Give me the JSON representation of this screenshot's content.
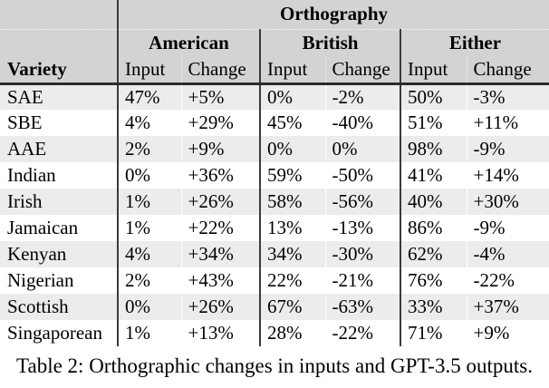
{
  "colors": {
    "header_bg": "#d3d3d3",
    "stripe_bg": "#ececec",
    "rule_dark": "#2b2b2b",
    "line_dark": "#3a3a3a"
  },
  "table": {
    "group_title": "Orthography",
    "groups": [
      "American",
      "British",
      "Either"
    ],
    "variety_header": "Variety",
    "sub_headers": [
      "Input",
      "Change"
    ],
    "rows": [
      [
        "SAE",
        "47%",
        "+5%",
        "0%",
        "-2%",
        "50%",
        "-3%"
      ],
      [
        "SBE",
        "4%",
        "+29%",
        "45%",
        "-40%",
        "51%",
        "+11%"
      ],
      [
        "AAE",
        "2%",
        "+9%",
        "0%",
        "0%",
        "98%",
        "-9%"
      ],
      [
        "Indian",
        "0%",
        "+36%",
        "59%",
        "-50%",
        "41%",
        "+14%"
      ],
      [
        "Irish",
        "1%",
        "+26%",
        "58%",
        "-56%",
        "40%",
        "+30%"
      ],
      [
        "Jamaican",
        "1%",
        "+22%",
        "13%",
        "-13%",
        "86%",
        "-9%"
      ],
      [
        "Kenyan",
        "4%",
        "+34%",
        "34%",
        "-30%",
        "62%",
        "-4%"
      ],
      [
        "Nigerian",
        "2%",
        "+43%",
        "22%",
        "-21%",
        "76%",
        "-22%"
      ],
      [
        "Scottish",
        "0%",
        "+26%",
        "67%",
        "-63%",
        "33%",
        "+37%"
      ],
      [
        "Singaporean",
        "1%",
        "+13%",
        "28%",
        "-22%",
        "71%",
        "+9%"
      ]
    ]
  },
  "caption": "Table 2: Orthographic changes in inputs and GPT-3.5 outputs."
}
